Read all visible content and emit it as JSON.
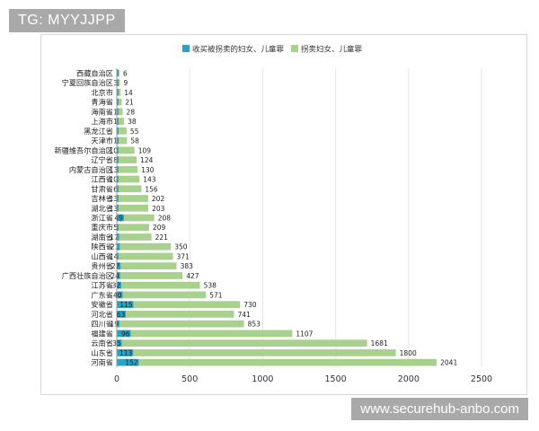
{
  "watermark_top": "TG: MYYJJPP",
  "watermark_bottom": "www.securehub-anbo.com",
  "colors": {
    "bought": "#29a3c4",
    "trafficked": "#a9d18e",
    "grid": "#e6e6e6",
    "axis": "#999999"
  },
  "chart_data": {
    "type": "bar",
    "orientation": "horizontal",
    "stacked": true,
    "legend_position": "top",
    "grid": true,
    "xlim": [
      0,
      2500
    ],
    "xticks": [
      0,
      500,
      1000,
      1500,
      2000,
      2500
    ],
    "categories": [
      "西藏自治区",
      "宁夏回族自治区",
      "北京市",
      "青海省",
      "海南省",
      "上海市",
      "黑龙江省",
      "天津市",
      "新疆维吾尔自治区",
      "辽宁省",
      "内蒙古自治区",
      "江西省",
      "甘肃省",
      "吉林省",
      "湖北省",
      "浙江省",
      "重庆市",
      "湖南省",
      "陕西省",
      "山西省",
      "贵州省",
      "广西壮族自治区",
      "江苏省",
      "广东省",
      "安徽省",
      "河北省",
      "四川省",
      "福建省",
      "云南省",
      "山东省",
      "河南省"
    ],
    "series": [
      {
        "name": "收买被拐卖的妇女、儿童罪",
        "labels": [
          "",
          "3",
          "",
          "",
          "1",
          "1",
          "",
          "1",
          "10",
          "8",
          "13",
          "10",
          "6",
          "13",
          "13",
          "49",
          "5",
          "17",
          "21",
          "14",
          "27",
          "24",
          "32",
          "40",
          "115",
          "63",
          "19",
          "96",
          "35",
          "113",
          "152"
        ],
        "values": [
          3,
          3,
          1,
          1,
          1,
          1,
          1,
          1,
          10,
          8,
          13,
          10,
          6,
          13,
          13,
          49,
          5,
          17,
          21,
          14,
          27,
          24,
          32,
          40,
          115,
          63,
          19,
          96,
          35,
          113,
          152
        ]
      },
      {
        "name": "拐卖妇女、儿童罪",
        "values": [
          6,
          9,
          14,
          21,
          28,
          38,
          55,
          58,
          109,
          124,
          130,
          143,
          156,
          202,
          203,
          208,
          209,
          221,
          350,
          371,
          383,
          427,
          538,
          571,
          730,
          741,
          853,
          1107,
          1681,
          1800,
          2041
        ]
      }
    ]
  }
}
